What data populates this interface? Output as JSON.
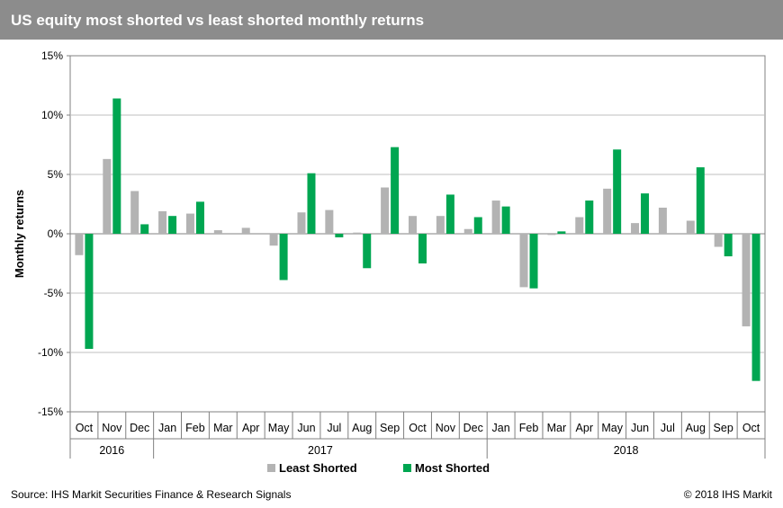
{
  "header": {
    "title": "US equity most shorted vs least shorted monthly returns"
  },
  "footer": {
    "source": "Source: IHS Markit Securities Finance & Research Signals",
    "copyright": "© 2018 IHS Markit"
  },
  "colors": {
    "least_shorted": "#b3b3b3",
    "most_shorted": "#00a651",
    "grid": "#bfbfbf",
    "title_bar": "#8c8c8c"
  },
  "chart_data": {
    "type": "bar",
    "title": "US equity most shorted vs least shorted monthly returns",
    "ylabel": "Monthly returns",
    "xlabel": "",
    "ylim": [
      -15,
      15
    ],
    "yticks": [
      15,
      10,
      5,
      0,
      -5,
      -10,
      -15
    ],
    "ytick_labels": [
      "15%",
      "10%",
      "5%",
      "0%",
      "-5%",
      "-10%",
      "-15%"
    ],
    "grid": true,
    "legend_position": "bottom-center",
    "categories": [
      "Oct",
      "Nov",
      "Dec",
      "Jan",
      "Feb",
      "Mar",
      "Apr",
      "May",
      "Jun",
      "Jul",
      "Aug",
      "Sep",
      "Oct",
      "Nov",
      "Dec",
      "Jan",
      "Feb",
      "Mar",
      "Apr",
      "May",
      "Jun",
      "Jul",
      "Aug",
      "Sep",
      "Oct"
    ],
    "year_groups": [
      {
        "label": "2016",
        "start": 0,
        "count": 3
      },
      {
        "label": "2017",
        "start": 3,
        "count": 12
      },
      {
        "label": "2018",
        "start": 15,
        "count": 10
      }
    ],
    "series": [
      {
        "name": "Least Shorted",
        "color": "#b3b3b3",
        "values": [
          -1.8,
          6.3,
          3.6,
          1.9,
          1.7,
          0.3,
          0.5,
          -1.0,
          1.8,
          2.0,
          0.1,
          3.9,
          1.5,
          1.5,
          0.4,
          2.8,
          -4.5,
          -0.1,
          1.4,
          3.8,
          0.9,
          2.2,
          1.1,
          -1.1,
          -7.8
        ]
      },
      {
        "name": "Most Shorted",
        "color": "#00a651",
        "values": [
          -9.7,
          11.4,
          0.8,
          1.5,
          2.7,
          0.0,
          0.0,
          -3.9,
          5.1,
          -0.3,
          -2.9,
          7.3,
          -2.5,
          3.3,
          1.4,
          2.3,
          -4.6,
          0.2,
          2.8,
          7.1,
          3.4,
          0.0,
          5.6,
          -1.9,
          -12.4
        ]
      }
    ]
  }
}
